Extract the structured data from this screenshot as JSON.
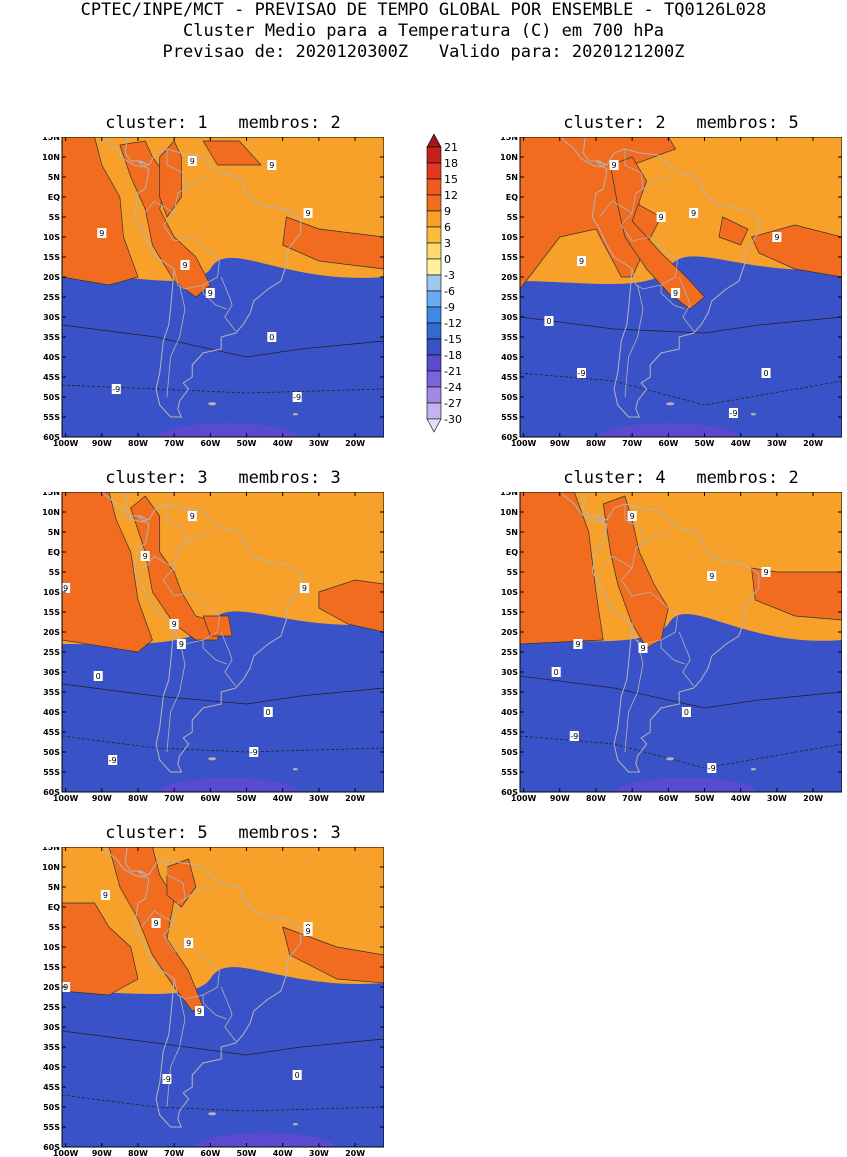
{
  "header": {
    "line1": "CPTEC/INPE/MCT - PREVISAO DE TEMPO GLOBAL POR ENSEMBLE - TQ0126L028",
    "line2": "Cluster Medio para a Temperatura (C) em 700 hPa",
    "line3": "Previsao de: 2020120300Z   Valido para: 2020121200Z"
  },
  "map": {
    "lat_labels": [
      "15N",
      "10N",
      "5N",
      "EQ",
      "5S",
      "10S",
      "15S",
      "20S",
      "25S",
      "30S",
      "35S",
      "40S",
      "45S",
      "50S",
      "55S",
      "60S"
    ],
    "lon_labels": [
      "100W",
      "90W",
      "80W",
      "70W",
      "60W",
      "50W",
      "40W",
      "30W",
      "20W"
    ],
    "lat_range": [
      -60,
      15
    ],
    "lon_range": [
      -101,
      -12
    ]
  },
  "colorbar": {
    "levels": [
      "21",
      "18",
      "15",
      "12",
      "9",
      "6",
      "3",
      "0",
      "-3",
      "-6",
      "-9",
      "-12",
      "-15",
      "-18",
      "-21",
      "-24",
      "-27",
      "-30"
    ],
    "colors": [
      "#9e1a1a",
      "#c4201c",
      "#e03a1e",
      "#ee5a1f",
      "#f26c1f",
      "#f7a12a",
      "#fbbe3b",
      "#fdd96c",
      "#fff0a0",
      "#9ec8f0",
      "#6aaaf0",
      "#3f88e6",
      "#2e6ccf",
      "#3a52c8",
      "#5a4ad0",
      "#7c62dc",
      "#a08ae4",
      "#c4b4ee",
      "#e4dcf6"
    ]
  },
  "panels": [
    {
      "title": "cluster: 1   membros: 2",
      "labels": [
        "9",
        "9",
        "9",
        "9",
        "9",
        "9",
        "0",
        "-9",
        "-9"
      ]
    },
    {
      "title": "cluster: 2   membros: 5",
      "labels": [
        "9",
        "9",
        "9",
        "9",
        "9",
        "9",
        "0",
        "0",
        "-9",
        "-9"
      ]
    },
    {
      "title": "cluster: 3   membros: 3",
      "labels": [
        "9",
        "9",
        "9",
        "9",
        "9",
        "9",
        "0",
        "0",
        "-9",
        "-9"
      ]
    },
    {
      "title": "cluster: 4   membros: 2",
      "labels": [
        "9",
        "9",
        "9",
        "9",
        "9",
        "0",
        "0",
        "-9",
        "-9"
      ]
    },
    {
      "title": "cluster: 5   membros: 3",
      "labels": [
        "9",
        "9",
        "9",
        "9",
        "9",
        "9",
        "9",
        "0",
        "-9"
      ]
    }
  ]
}
